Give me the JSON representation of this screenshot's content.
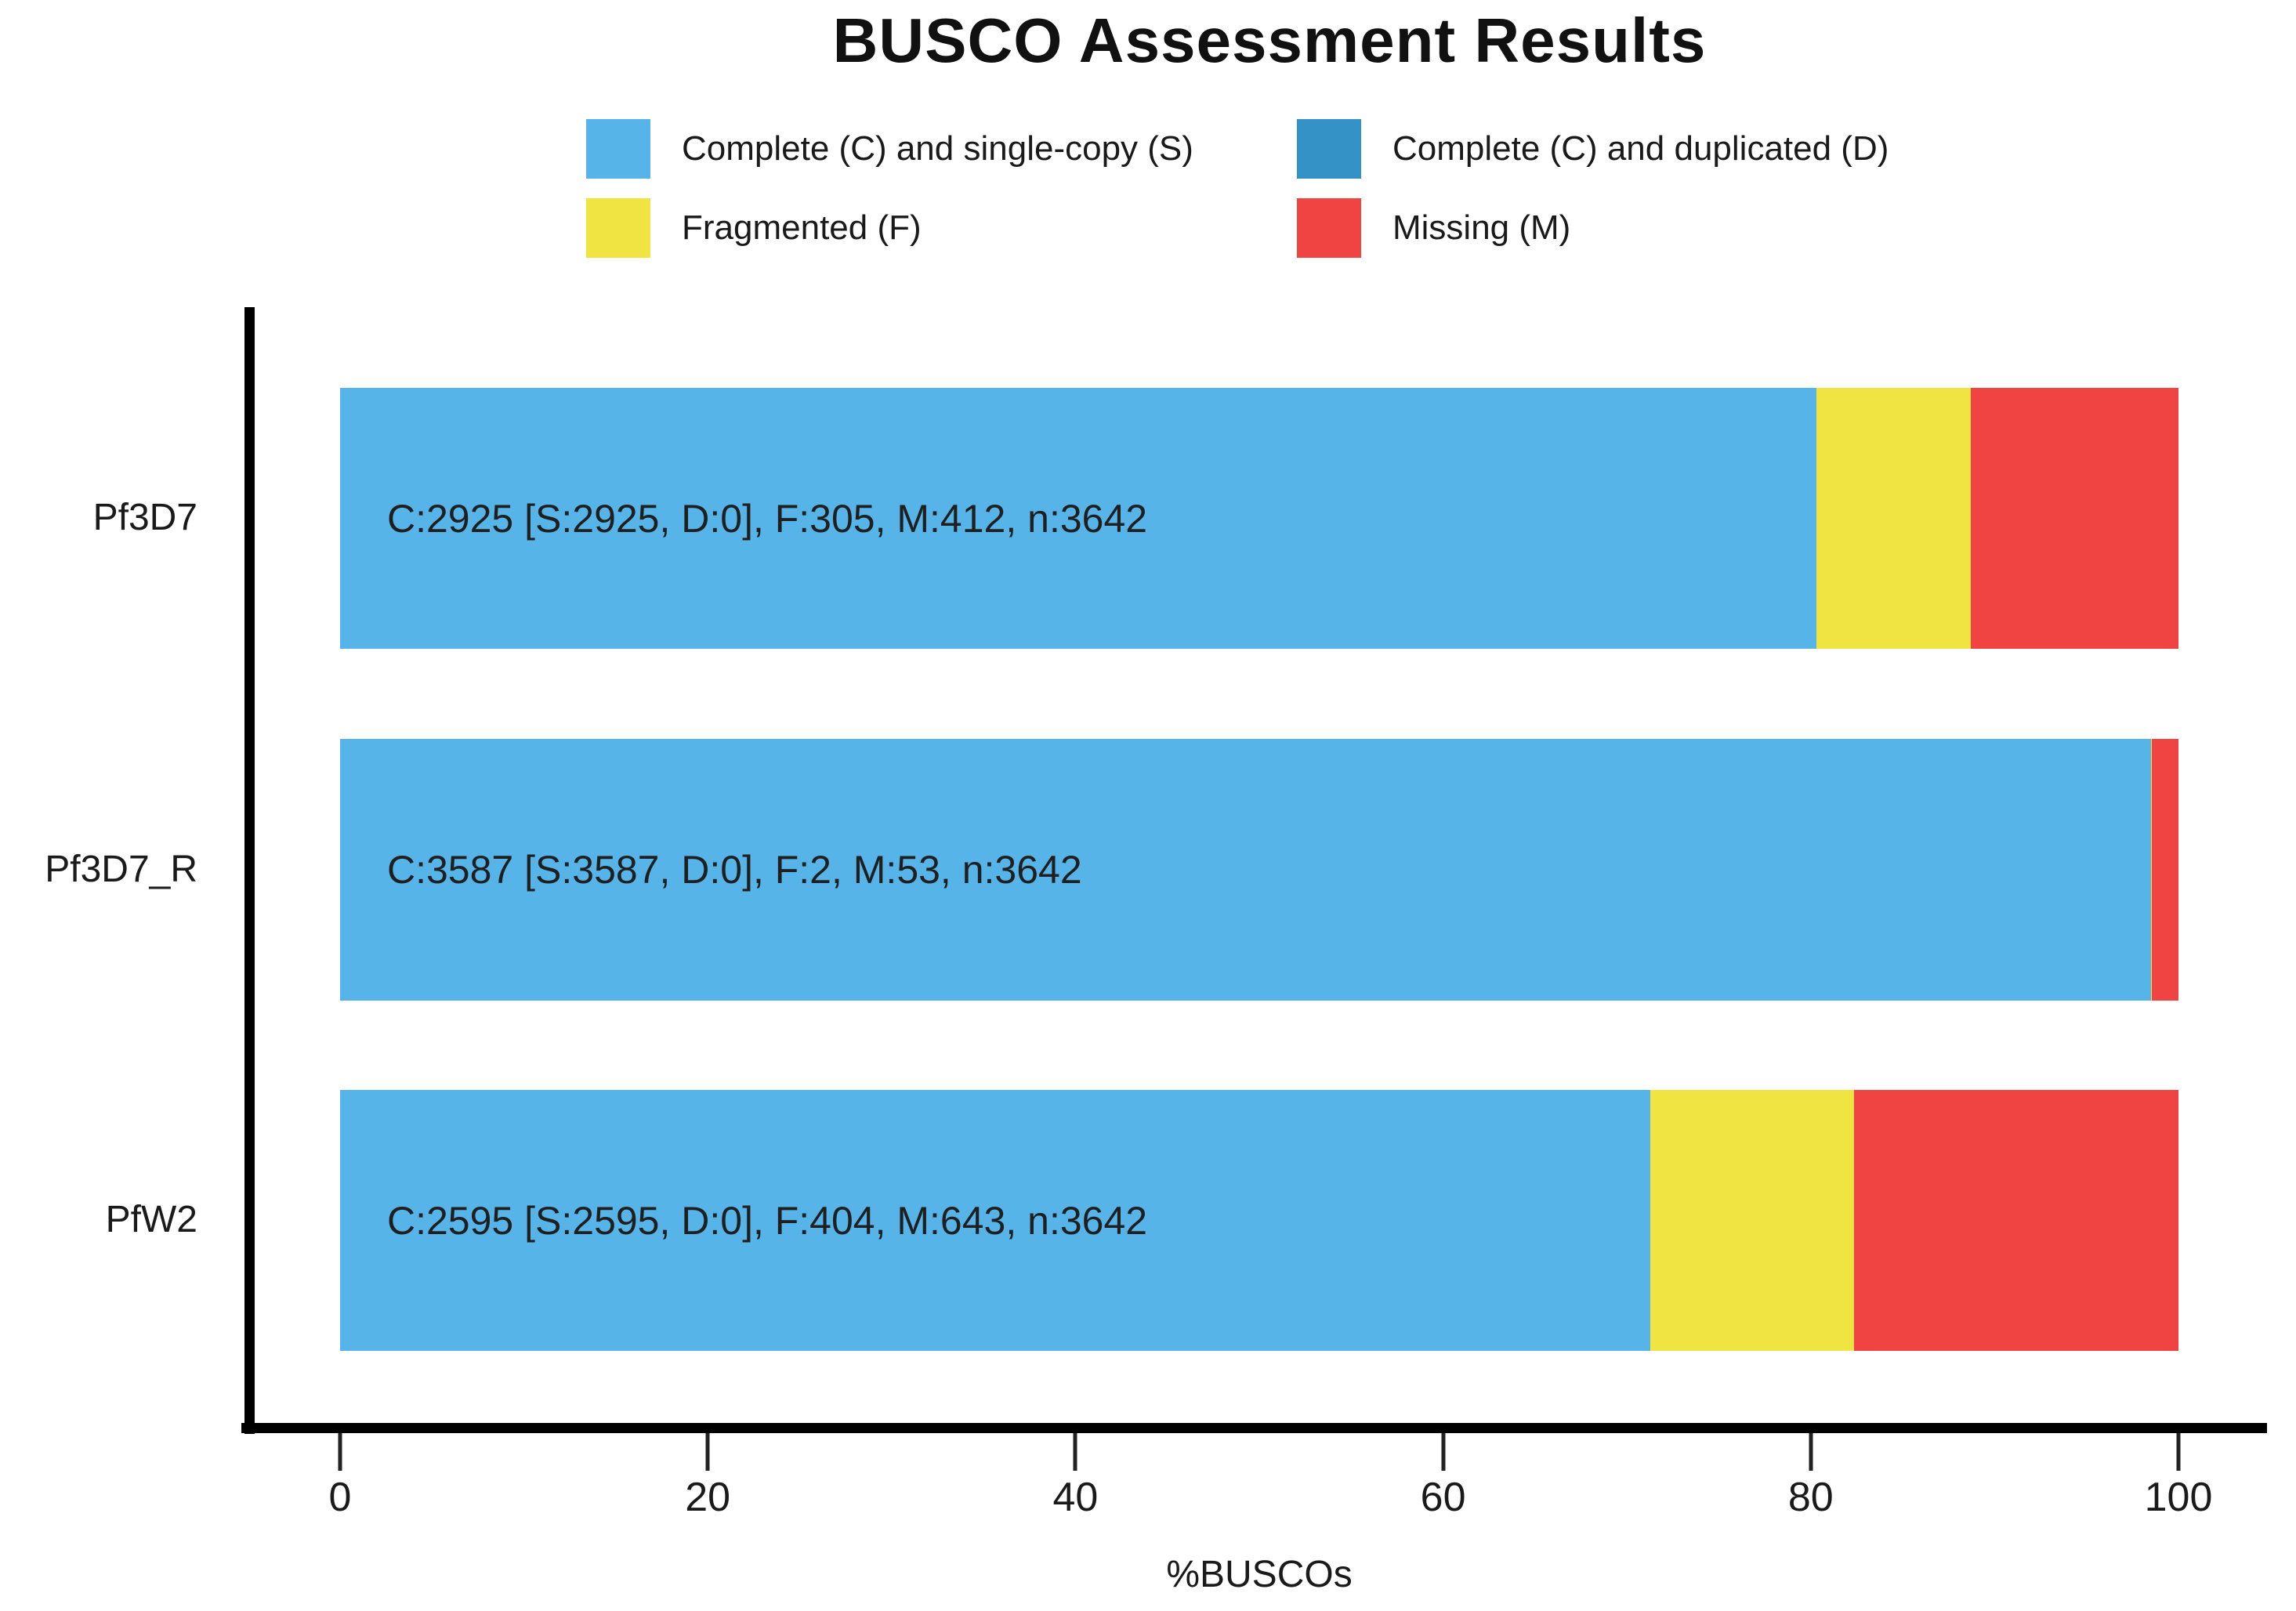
{
  "page": {
    "background_color": "#ffffff",
    "axis_color": "#000000",
    "text_color": "#1a1a1a"
  },
  "chart_data": {
    "type": "bar",
    "orientation": "horizontal",
    "stacked": true,
    "title": "BUSCO Assessment Results",
    "xlabel": "%BUSCOs",
    "xlim": [
      0,
      100
    ],
    "x_ticks": [
      0,
      20,
      40,
      60,
      80,
      100
    ],
    "grid": false,
    "legend_position": "top",
    "categories": [
      "Pf3D7",
      "Pf3D7_R",
      "PfW2"
    ],
    "n_total": 3642,
    "series": [
      {
        "name": "Complete (C) and single-copy (S)",
        "color": "#56B4E9",
        "values": [
          2925,
          3587,
          2595
        ]
      },
      {
        "name": "Complete (C) and duplicated (D)",
        "color": "#3492C7",
        "values": [
          0,
          0,
          0
        ]
      },
      {
        "name": "Fragmented (F)",
        "color": "#F0E442",
        "values": [
          305,
          2,
          404
        ]
      },
      {
        "name": "Missing (M)",
        "color": "#F04442",
        "values": [
          412,
          53,
          643
        ]
      }
    ],
    "bar_labels": [
      "C:2925 [S:2925, D:0], F:305, M:412, n:3642",
      "C:3587 [S:3587, D:0], F:2, M:53, n:3642",
      "C:2595 [S:2595, D:0], F:404, M:643, n:3642"
    ]
  }
}
